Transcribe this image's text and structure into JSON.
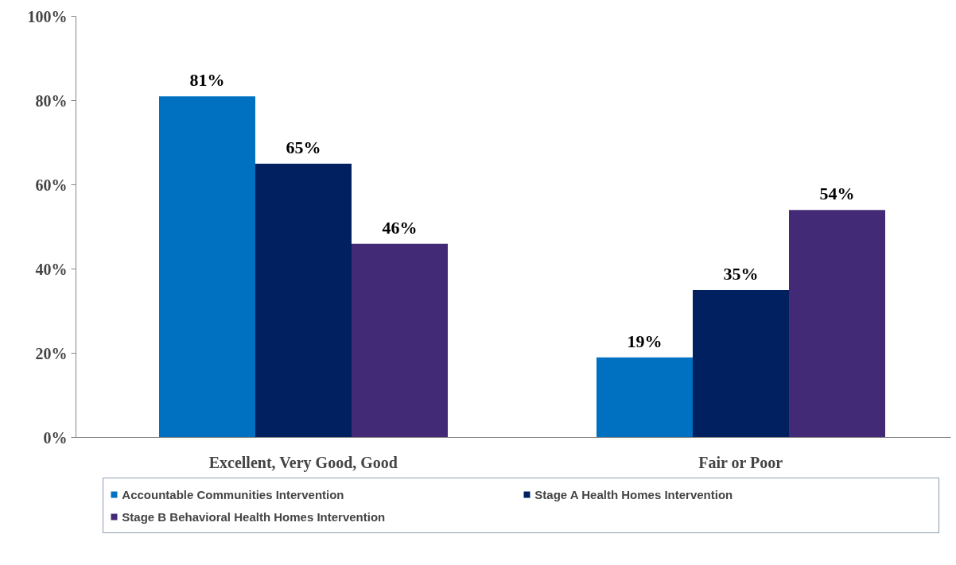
{
  "chart_data": {
    "type": "bar",
    "categories": [
      "Excellent, Very Good, Good",
      "Fair or Poor"
    ],
    "series": [
      {
        "name": "Accountable Communities Intervention",
        "color": "#0070c0",
        "values": [
          81,
          19
        ],
        "value_labels": [
          "81%",
          "19%"
        ]
      },
      {
        "name": "Stage A Health Homes Intervention",
        "color": "#002060",
        "values": [
          65,
          35
        ],
        "value_labels": [
          "65%",
          "35%"
        ]
      },
      {
        "name": "Stage B Behavioral Health Homes Intervention",
        "color": "#432a76",
        "values": [
          46,
          54
        ],
        "value_labels": [
          "46%",
          "54%"
        ]
      }
    ],
    "ylim": [
      0,
      100
    ],
    "yticks": [
      {
        "value": 0,
        "label": "0%"
      },
      {
        "value": 20,
        "label": "20%"
      },
      {
        "value": 40,
        "label": "40%"
      },
      {
        "value": 60,
        "label": "60%"
      },
      {
        "value": 80,
        "label": "80%"
      },
      {
        "value": 100,
        "label": "100%"
      }
    ],
    "grid": false,
    "legend": "bottom"
  }
}
